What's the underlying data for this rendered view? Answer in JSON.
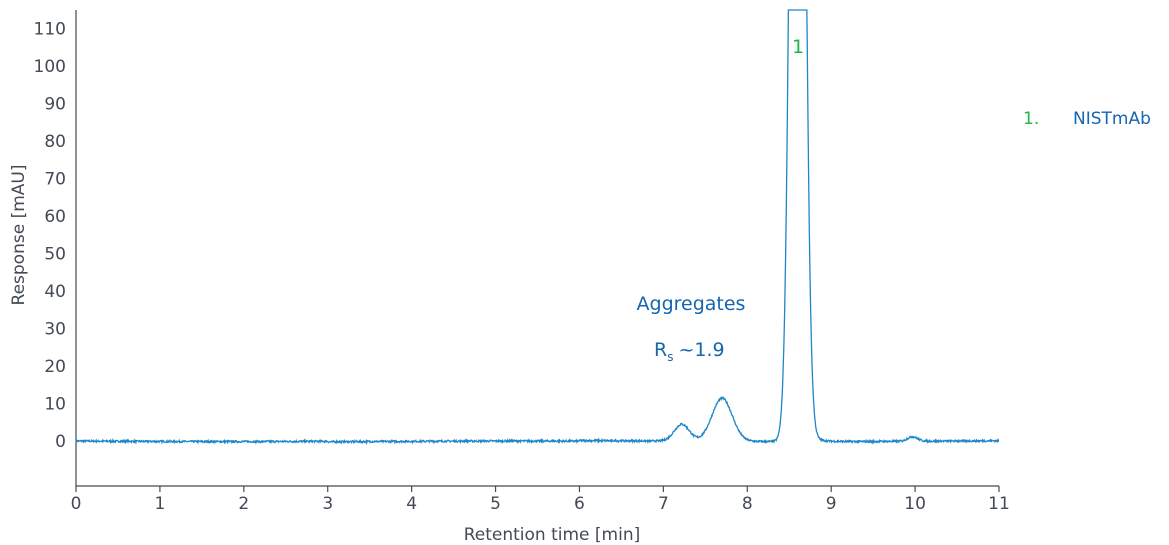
{
  "colors": {
    "trace": "#1f86c8",
    "annotation": "#1565b0",
    "peak_label": "#22b44a",
    "axis": "#444a54"
  },
  "chart_data": {
    "type": "line",
    "xlabel": "Retention time [min]",
    "ylabel": "Response [mAU]",
    "xlim": [
      0,
      11
    ],
    "ylim": [
      -12,
      115
    ],
    "x_ticks": [
      0,
      1,
      2,
      3,
      4,
      5,
      6,
      7,
      8,
      9,
      10,
      11
    ],
    "y_ticks": [
      0,
      10,
      20,
      30,
      40,
      50,
      60,
      70,
      80,
      90,
      100,
      110
    ],
    "grid": false,
    "baseline": 0.0,
    "peaks": [
      {
        "center": 7.22,
        "height": 4.5,
        "width": 0.09
      },
      {
        "center": 7.7,
        "height": 11.5,
        "width": 0.12
      },
      {
        "center": 8.6,
        "height": 400,
        "width": 0.07
      },
      {
        "center": 9.97,
        "height": 1.2,
        "width": 0.06
      }
    ],
    "annotations": {
      "aggregates_label": "Aggregates",
      "resolution_main": "R",
      "resolution_sub": "s",
      "resolution_value": "~1.9",
      "peak_number": "1"
    },
    "legend": [
      {
        "number": "1.",
        "name": "NISTmAb"
      }
    ]
  }
}
